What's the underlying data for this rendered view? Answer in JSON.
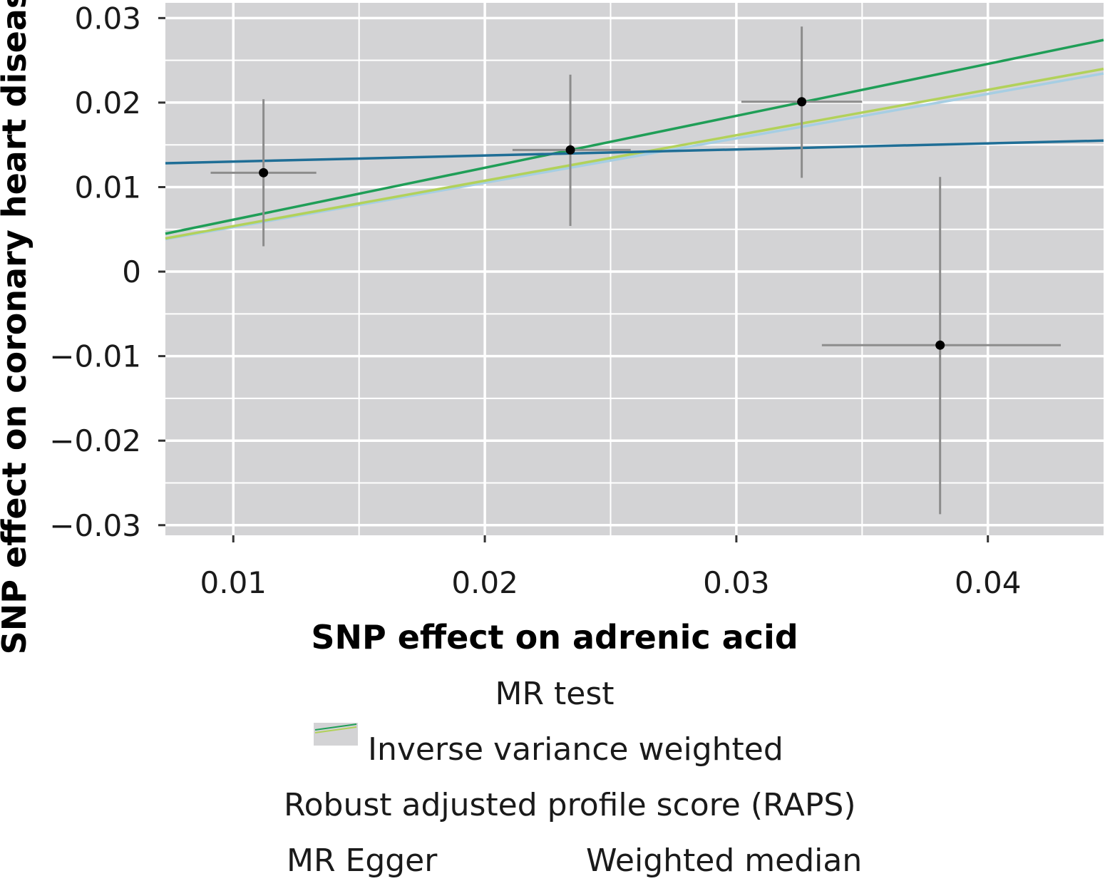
{
  "chart_data": {
    "type": "scatter",
    "title": "",
    "xlabel": "SNP effect on adrenic acid",
    "ylabel": "SNP effect on coronary heart disease",
    "xlim": [
      0.0073,
      0.0446
    ],
    "ylim": [
      -0.0312,
      0.0318
    ],
    "x_ticks": [
      0.01,
      0.02,
      0.03,
      0.04
    ],
    "x_tick_labels": [
      "0.01",
      "0.02",
      "0.03",
      "0.04"
    ],
    "y_ticks": [
      -0.03,
      -0.02,
      -0.01,
      0,
      0.01,
      0.02,
      0.03
    ],
    "y_tick_labels": [
      "−0.03",
      "−0.02",
      "−0.01",
      "0",
      "0.01",
      "0.02",
      "0.03"
    ],
    "grid": true,
    "points": [
      {
        "x": 0.0112,
        "y": 0.0117,
        "x_low": 0.0091,
        "x_high": 0.0133,
        "y_low": 0.003,
        "y_high": 0.0204
      },
      {
        "x": 0.0234,
        "y": 0.0144,
        "x_low": 0.0211,
        "x_high": 0.0258,
        "y_low": 0.0054,
        "y_high": 0.0233
      },
      {
        "x": 0.0326,
        "y": 0.0201,
        "x_low": 0.0302,
        "x_high": 0.035,
        "y_low": 0.0111,
        "y_high": 0.029
      },
      {
        "x": 0.0381,
        "y": -0.0087,
        "x_low": 0.0334,
        "x_high": 0.0429,
        "y_low": -0.0287,
        "y_high": 0.0112
      }
    ],
    "lines": [
      {
        "name": "Inverse variance weighted",
        "color": "#a6cee3",
        "slope": 0.5257,
        "intercept": 0
      },
      {
        "name": "Robust adjusted profile score (RAPS)",
        "color": "#b2d15a",
        "slope": 0.5378,
        "intercept": 0
      },
      {
        "name": "MR Egger",
        "color": "#1f9e57",
        "slope": 0.6144,
        "intercept": 0
      },
      {
        "name": "Weighted median",
        "color": "#1f6e96",
        "slope": 0.0718,
        "intercept": 0.0123
      }
    ],
    "legend": {
      "title": "MR test",
      "position": "bottom",
      "entries": [
        "Inverse variance weighted",
        "Robust adjusted profile score (RAPS)",
        "MR Egger",
        "Weighted median"
      ]
    }
  }
}
